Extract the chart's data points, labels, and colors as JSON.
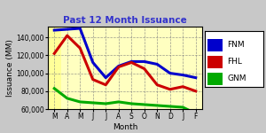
{
  "title": "Past 12 Month Issuance",
  "xlabel": "Month",
  "ylabel": "Issuance (MM)",
  "months": [
    "M",
    "A",
    "M",
    "J",
    "J",
    "A",
    "S",
    "O",
    "N",
    "D",
    "J",
    "F"
  ],
  "FNM": [
    148000,
    149000,
    150000,
    112000,
    95000,
    108000,
    113000,
    113000,
    110000,
    100000,
    98000,
    95000
  ],
  "FHL": [
    122000,
    142000,
    128000,
    93000,
    87000,
    107000,
    112000,
    105000,
    87000,
    82000,
    85000,
    80000
  ],
  "GNM": [
    83000,
    72000,
    68000,
    67000,
    66000,
    68000,
    66000,
    65000,
    64000,
    63000,
    62000,
    55000
  ],
  "color_FNM": "#0000cc",
  "color_FHL": "#cc0000",
  "color_GNM": "#00aa00",
  "ylim_min": 60000,
  "ylim_max": 152000,
  "yticks": [
    60000,
    80000,
    100000,
    120000,
    140000
  ],
  "line_width": 2.2,
  "bg_plot": "#ffffc0",
  "bg_left_bar": "#ffff99",
  "fig_bg": "#c8c8c8",
  "title_color": "#3333cc",
  "title_fontsize": 7.5,
  "axis_fontsize": 6.5,
  "tick_fontsize": 5.5,
  "legend_fontsize": 6.5
}
